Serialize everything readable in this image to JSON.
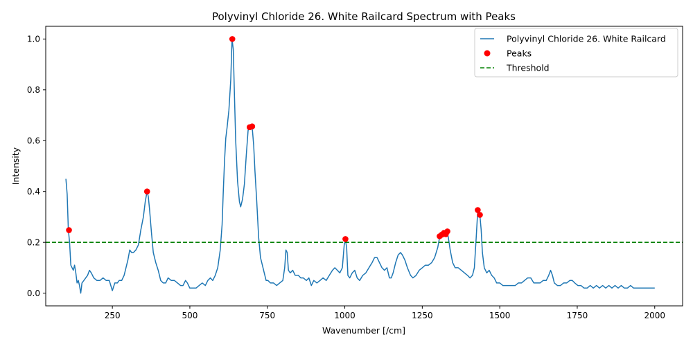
{
  "chart_data": {
    "type": "line",
    "title": "Polyvinyl Chloride 26. White Railcard Spectrum with Peaks",
    "xlabel": "Wavenumber [/cm]",
    "ylabel": "Intensity",
    "xlim": [
      35,
      2090
    ],
    "ylim": [
      -0.05,
      1.05
    ],
    "xticks": [
      250,
      500,
      750,
      1000,
      1250,
      1500,
      1750,
      2000
    ],
    "xtick_labels": [
      "250",
      "500",
      "750",
      "1000",
      "1250",
      "1500",
      "1750",
      "2000"
    ],
    "yticks": [
      0.0,
      0.2,
      0.4,
      0.6,
      0.8,
      1.0
    ],
    "ytick_labels": [
      "0.0",
      "0.2",
      "0.4",
      "0.6",
      "0.8",
      "1.0"
    ],
    "grid": false,
    "legend_position": "top-right",
    "colors": {
      "spectrum": "#1f77b4",
      "peaks": "#ff0000",
      "threshold": "#008000"
    },
    "series": [
      {
        "name": "Polyvinyl Chloride 26. White Railcard",
        "kind": "line",
        "points": [
          [
            100,
            0.45
          ],
          [
            104,
            0.39
          ],
          [
            108,
            0.25
          ],
          [
            112,
            0.2
          ],
          [
            116,
            0.11
          ],
          [
            120,
            0.1
          ],
          [
            124,
            0.09
          ],
          [
            128,
            0.11
          ],
          [
            132,
            0.08
          ],
          [
            136,
            0.04
          ],
          [
            140,
            0.05
          ],
          [
            144,
            0.03
          ],
          [
            148,
            0.0
          ],
          [
            152,
            0.04
          ],
          [
            158,
            0.05
          ],
          [
            164,
            0.06
          ],
          [
            170,
            0.07
          ],
          [
            176,
            0.09
          ],
          [
            182,
            0.08
          ],
          [
            190,
            0.06
          ],
          [
            200,
            0.05
          ],
          [
            210,
            0.05
          ],
          [
            220,
            0.06
          ],
          [
            230,
            0.05
          ],
          [
            240,
            0.05
          ],
          [
            245,
            0.03
          ],
          [
            250,
            0.01
          ],
          [
            258,
            0.04
          ],
          [
            266,
            0.04
          ],
          [
            272,
            0.05
          ],
          [
            280,
            0.05
          ],
          [
            288,
            0.07
          ],
          [
            294,
            0.1
          ],
          [
            300,
            0.13
          ],
          [
            306,
            0.17
          ],
          [
            312,
            0.16
          ],
          [
            318,
            0.16
          ],
          [
            326,
            0.17
          ],
          [
            334,
            0.19
          ],
          [
            342,
            0.25
          ],
          [
            350,
            0.3
          ],
          [
            356,
            0.36
          ],
          [
            362,
            0.4
          ],
          [
            366,
            0.38
          ],
          [
            370,
            0.33
          ],
          [
            376,
            0.24
          ],
          [
            382,
            0.16
          ],
          [
            390,
            0.12
          ],
          [
            398,
            0.09
          ],
          [
            406,
            0.05
          ],
          [
            414,
            0.04
          ],
          [
            422,
            0.04
          ],
          [
            430,
            0.06
          ],
          [
            440,
            0.05
          ],
          [
            450,
            0.05
          ],
          [
            460,
            0.04
          ],
          [
            470,
            0.03
          ],
          [
            478,
            0.03
          ],
          [
            486,
            0.05
          ],
          [
            492,
            0.04
          ],
          [
            500,
            0.02
          ],
          [
            510,
            0.02
          ],
          [
            520,
            0.02
          ],
          [
            530,
            0.03
          ],
          [
            540,
            0.04
          ],
          [
            550,
            0.03
          ],
          [
            558,
            0.05
          ],
          [
            566,
            0.06
          ],
          [
            574,
            0.05
          ],
          [
            582,
            0.07
          ],
          [
            590,
            0.1
          ],
          [
            598,
            0.17
          ],
          [
            604,
            0.27
          ],
          [
            608,
            0.4
          ],
          [
            612,
            0.52
          ],
          [
            616,
            0.61
          ],
          [
            620,
            0.65
          ],
          [
            626,
            0.72
          ],
          [
            632,
            0.84
          ],
          [
            636,
            1.0
          ],
          [
            640,
            0.96
          ],
          [
            644,
            0.78
          ],
          [
            648,
            0.6
          ],
          [
            654,
            0.44
          ],
          [
            660,
            0.36
          ],
          [
            664,
            0.34
          ],
          [
            670,
            0.37
          ],
          [
            676,
            0.43
          ],
          [
            682,
            0.54
          ],
          [
            688,
            0.64
          ],
          [
            693,
            0.655
          ],
          [
            698,
            0.656
          ],
          [
            702,
            0.64
          ],
          [
            706,
            0.58
          ],
          [
            710,
            0.48
          ],
          [
            716,
            0.36
          ],
          [
            722,
            0.22
          ],
          [
            728,
            0.14
          ],
          [
            734,
            0.11
          ],
          [
            740,
            0.08
          ],
          [
            746,
            0.05
          ],
          [
            752,
            0.05
          ],
          [
            760,
            0.04
          ],
          [
            770,
            0.04
          ],
          [
            780,
            0.03
          ],
          [
            790,
            0.04
          ],
          [
            800,
            0.05
          ],
          [
            806,
            0.1
          ],
          [
            810,
            0.17
          ],
          [
            814,
            0.16
          ],
          [
            818,
            0.09
          ],
          [
            824,
            0.08
          ],
          [
            832,
            0.09
          ],
          [
            840,
            0.07
          ],
          [
            850,
            0.07
          ],
          [
            858,
            0.06
          ],
          [
            866,
            0.06
          ],
          [
            876,
            0.05
          ],
          [
            884,
            0.06
          ],
          [
            892,
            0.03
          ],
          [
            900,
            0.05
          ],
          [
            910,
            0.04
          ],
          [
            920,
            0.05
          ],
          [
            930,
            0.06
          ],
          [
            940,
            0.05
          ],
          [
            950,
            0.07
          ],
          [
            960,
            0.09
          ],
          [
            968,
            0.1
          ],
          [
            976,
            0.09
          ],
          [
            984,
            0.08
          ],
          [
            992,
            0.1
          ],
          [
            998,
            0.19
          ],
          [
            1002,
            0.21
          ],
          [
            1006,
            0.18
          ],
          [
            1010,
            0.07
          ],
          [
            1016,
            0.06
          ],
          [
            1024,
            0.08
          ],
          [
            1032,
            0.09
          ],
          [
            1040,
            0.06
          ],
          [
            1048,
            0.05
          ],
          [
            1058,
            0.07
          ],
          [
            1068,
            0.08
          ],
          [
            1078,
            0.1
          ],
          [
            1088,
            0.12
          ],
          [
            1096,
            0.14
          ],
          [
            1104,
            0.14
          ],
          [
            1112,
            0.12
          ],
          [
            1120,
            0.1
          ],
          [
            1128,
            0.09
          ],
          [
            1136,
            0.1
          ],
          [
            1144,
            0.06
          ],
          [
            1150,
            0.06
          ],
          [
            1156,
            0.08
          ],
          [
            1164,
            0.12
          ],
          [
            1172,
            0.15
          ],
          [
            1180,
            0.16
          ],
          [
            1186,
            0.15
          ],
          [
            1194,
            0.13
          ],
          [
            1202,
            0.1
          ],
          [
            1212,
            0.07
          ],
          [
            1220,
            0.06
          ],
          [
            1230,
            0.07
          ],
          [
            1240,
            0.09
          ],
          [
            1250,
            0.1
          ],
          [
            1260,
            0.11
          ],
          [
            1270,
            0.11
          ],
          [
            1280,
            0.12
          ],
          [
            1290,
            0.14
          ],
          [
            1300,
            0.18
          ],
          [
            1306,
            0.22
          ],
          [
            1312,
            0.23
          ],
          [
            1318,
            0.235
          ],
          [
            1324,
            0.23
          ],
          [
            1330,
            0.24
          ],
          [
            1334,
            0.22
          ],
          [
            1340,
            0.17
          ],
          [
            1348,
            0.12
          ],
          [
            1356,
            0.1
          ],
          [
            1366,
            0.1
          ],
          [
            1376,
            0.09
          ],
          [
            1386,
            0.08
          ],
          [
            1396,
            0.07
          ],
          [
            1404,
            0.06
          ],
          [
            1412,
            0.07
          ],
          [
            1418,
            0.1
          ],
          [
            1424,
            0.22
          ],
          [
            1429,
            0.325
          ],
          [
            1432,
            0.32
          ],
          [
            1436,
            0.305
          ],
          [
            1440,
            0.25
          ],
          [
            1444,
            0.16
          ],
          [
            1450,
            0.1
          ],
          [
            1458,
            0.08
          ],
          [
            1466,
            0.09
          ],
          [
            1474,
            0.07
          ],
          [
            1482,
            0.06
          ],
          [
            1490,
            0.04
          ],
          [
            1500,
            0.04
          ],
          [
            1510,
            0.03
          ],
          [
            1520,
            0.03
          ],
          [
            1530,
            0.03
          ],
          [
            1540,
            0.03
          ],
          [
            1550,
            0.03
          ],
          [
            1560,
            0.04
          ],
          [
            1570,
            0.04
          ],
          [
            1580,
            0.05
          ],
          [
            1590,
            0.06
          ],
          [
            1600,
            0.06
          ],
          [
            1610,
            0.04
          ],
          [
            1620,
            0.04
          ],
          [
            1630,
            0.04
          ],
          [
            1640,
            0.05
          ],
          [
            1650,
            0.05
          ],
          [
            1658,
            0.07
          ],
          [
            1664,
            0.09
          ],
          [
            1670,
            0.07
          ],
          [
            1676,
            0.04
          ],
          [
            1686,
            0.03
          ],
          [
            1696,
            0.03
          ],
          [
            1706,
            0.04
          ],
          [
            1716,
            0.04
          ],
          [
            1726,
            0.05
          ],
          [
            1734,
            0.05
          ],
          [
            1742,
            0.04
          ],
          [
            1752,
            0.03
          ],
          [
            1762,
            0.03
          ],
          [
            1772,
            0.02
          ],
          [
            1782,
            0.02
          ],
          [
            1792,
            0.03
          ],
          [
            1802,
            0.02
          ],
          [
            1812,
            0.03
          ],
          [
            1822,
            0.02
          ],
          [
            1832,
            0.03
          ],
          [
            1842,
            0.02
          ],
          [
            1852,
            0.03
          ],
          [
            1862,
            0.02
          ],
          [
            1872,
            0.03
          ],
          [
            1882,
            0.02
          ],
          [
            1892,
            0.03
          ],
          [
            1902,
            0.02
          ],
          [
            1912,
            0.02
          ],
          [
            1922,
            0.03
          ],
          [
            1932,
            0.02
          ],
          [
            1942,
            0.02
          ],
          [
            1952,
            0.02
          ],
          [
            1962,
            0.02
          ],
          [
            1972,
            0.02
          ],
          [
            1982,
            0.02
          ],
          [
            1992,
            0.02
          ],
          [
            2000,
            0.02
          ]
        ]
      },
      {
        "name": "Peaks",
        "kind": "scatter",
        "points": [
          [
            110,
            0.248
          ],
          [
            362,
            0.4
          ],
          [
            637,
            1.0
          ],
          [
            693,
            0.653
          ],
          [
            701,
            0.656
          ],
          [
            1002,
            0.213
          ],
          [
            1306,
            0.224
          ],
          [
            1313,
            0.23
          ],
          [
            1320,
            0.237
          ],
          [
            1326,
            0.232
          ],
          [
            1331,
            0.243
          ],
          [
            1429,
            0.327
          ],
          [
            1436,
            0.308
          ]
        ]
      },
      {
        "name": "Threshold",
        "kind": "hline",
        "y": 0.2
      }
    ]
  }
}
